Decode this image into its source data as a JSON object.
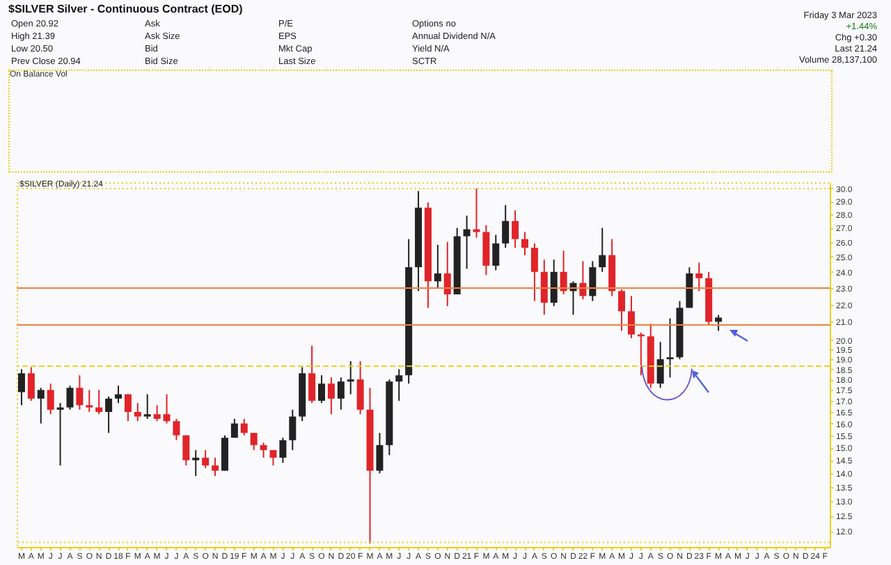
{
  "chart_data": {
    "type": "candlestick",
    "title": "$SILVER Silver - Continuous Contract (EOD)",
    "annotations": [
      "Open 20.92",
      "High 21.39",
      "Low 20.50",
      "Prev Close 20.94",
      "Ask",
      "Ask Size",
      "Bid",
      "Bid Size",
      "P/E",
      "EPS",
      "Mkt Cap",
      "Last Size",
      "Options no",
      "Annual Dividend N/A",
      "Yield N/A",
      "SCTR",
      "Friday 3 Mar 2023",
      "+1.44%",
      "Chg +0.30",
      "Last 21.24",
      "Volume 28,137,100",
      "On Balance Vol",
      "$SILVER (Daily) 21.24"
    ],
    "colors": [
      "#222222",
      "#e0242a",
      "#222222",
      "#e0242a",
      "#222222",
      "#222222",
      "#e0242a",
      "#e0242a",
      "#e0242a",
      "#222222",
      "#222222",
      "#e0242a",
      "#e0242a",
      "#222222",
      "#e0242a",
      "#e0242a",
      "#e0242a",
      "#e0242a",
      "#222222",
      "#e0242a",
      "#e0242a",
      "#222222",
      "#222222",
      "#e0242a",
      "#e0242a",
      "#e0242a",
      "#e0242a",
      "#222222",
      "#222222",
      "#222222",
      "#e0242a",
      "#222222",
      "#e0242a",
      "#222222",
      "#222222",
      "#e0242a",
      "#e0242a",
      "#222222",
      "#222222",
      "#222222",
      "#222222",
      "#222222",
      "#e0242a",
      "#222222",
      "#e0242a",
      "#222222",
      "#222222",
      "#e0242a",
      "#e0242a",
      "#222222",
      "#222222",
      "#e0242a",
      "#e0242a",
      "#e0242a",
      "#e0242a",
      "#222222",
      "#e0242a",
      "#222222",
      "#e0242a",
      "#222222",
      "#222222",
      "#e0242a",
      "#e0242a",
      "#e0242a",
      "#e0242a",
      "#e0242a",
      "#222222",
      "#222222",
      "#222222",
      "#222222",
      "#e0242a",
      "#e0242a",
      "#222222",
      null,
      null,
      null,
      null,
      null,
      null,
      null,
      null,
      null,
      null,
      null
    ],
    "categories": [
      "M",
      "A",
      "M",
      "J",
      "J",
      "A",
      "S",
      "O",
      "N",
      "D",
      "18",
      "F",
      "M",
      "A",
      "M",
      "J",
      "J",
      "A",
      "S",
      "O",
      "N",
      "D",
      "19",
      "F",
      "M",
      "A",
      "M",
      "J",
      "J",
      "A",
      "S",
      "O",
      "N",
      "D",
      "20",
      "F",
      "M",
      "A",
      "M",
      "J",
      "J",
      "A",
      "S",
      "O",
      "N",
      "D",
      "21",
      "F",
      "M",
      "A",
      "M",
      "J",
      "J",
      "A",
      "S",
      "O",
      "N",
      "D",
      "22",
      "F",
      "M",
      "A",
      "M",
      "J",
      "J",
      "A",
      "S",
      "O",
      "N",
      "D",
      "23",
      "F",
      "M",
      "A",
      "M",
      "J",
      "J",
      "A",
      "S",
      "O",
      "N",
      "D",
      "24",
      "F"
    ],
    "ohlc": [
      [
        17.4,
        18.5,
        16.8,
        18.3
      ],
      [
        18.3,
        18.6,
        17.0,
        17.1
      ],
      [
        17.1,
        17.6,
        16.0,
        17.5
      ],
      [
        17.5,
        17.8,
        16.4,
        16.6
      ],
      [
        16.6,
        16.9,
        14.3,
        16.7
      ],
      [
        16.7,
        17.7,
        16.6,
        17.6
      ],
      [
        17.6,
        18.2,
        16.6,
        16.8
      ],
      [
        16.8,
        17.5,
        16.5,
        16.7
      ],
      [
        16.7,
        17.5,
        16.4,
        16.5
      ],
      [
        16.5,
        17.2,
        15.6,
        17.1
      ],
      [
        17.1,
        17.7,
        16.9,
        17.3
      ],
      [
        17.3,
        17.3,
        16.1,
        16.5
      ],
      [
        16.5,
        16.9,
        16.1,
        16.3
      ],
      [
        16.3,
        17.3,
        16.2,
        16.4
      ],
      [
        16.4,
        16.8,
        16.1,
        16.2
      ],
      [
        16.4,
        17.3,
        16.0,
        16.1
      ],
      [
        16.1,
        16.2,
        15.3,
        15.5
      ],
      [
        15.5,
        15.5,
        14.3,
        14.5
      ],
      [
        14.5,
        14.9,
        13.9,
        14.6
      ],
      [
        14.6,
        14.9,
        14.2,
        14.3
      ],
      [
        14.3,
        14.6,
        13.9,
        14.1
      ],
      [
        14.1,
        15.5,
        14.1,
        15.4
      ],
      [
        15.4,
        16.2,
        15.4,
        16.0
      ],
      [
        16.0,
        16.2,
        15.5,
        15.6
      ],
      [
        15.6,
        15.6,
        14.9,
        15.1
      ],
      [
        15.1,
        15.2,
        14.6,
        14.9
      ],
      [
        14.9,
        14.9,
        14.3,
        14.6
      ],
      [
        14.6,
        15.4,
        14.4,
        15.3
      ],
      [
        15.3,
        16.6,
        14.9,
        16.3
      ],
      [
        16.3,
        18.6,
        16.1,
        18.3
      ],
      [
        18.3,
        19.7,
        16.9,
        17.0
      ],
      [
        17.0,
        18.2,
        16.9,
        17.8
      ],
      [
        17.8,
        18.1,
        16.4,
        17.1
      ],
      [
        17.1,
        18.1,
        16.6,
        17.9
      ],
      [
        17.9,
        18.9,
        17.3,
        18.0
      ],
      [
        18.0,
        18.9,
        16.4,
        16.6
      ],
      [
        16.6,
        17.6,
        11.6,
        14.1
      ],
      [
        14.1,
        15.6,
        14.0,
        15.1
      ],
      [
        15.1,
        18.0,
        14.7,
        17.9
      ],
      [
        17.9,
        18.5,
        17.0,
        18.2
      ],
      [
        18.2,
        26.2,
        17.8,
        24.3
      ],
      [
        24.3,
        29.8,
        22.8,
        28.5
      ],
      [
        28.5,
        28.9,
        21.8,
        23.4
      ],
      [
        23.4,
        25.8,
        23.0,
        23.9
      ],
      [
        23.9,
        26.0,
        21.9,
        22.6
      ],
      [
        22.6,
        27.0,
        22.6,
        26.4
      ],
      [
        26.4,
        27.9,
        24.2,
        26.9
      ],
      [
        26.9,
        30.0,
        26.3,
        26.7
      ],
      [
        26.7,
        27.2,
        23.8,
        24.4
      ],
      [
        24.4,
        26.5,
        24.1,
        25.9
      ],
      [
        25.9,
        28.7,
        25.6,
        27.5
      ],
      [
        27.5,
        28.3,
        25.6,
        26.2
      ],
      [
        26.2,
        26.7,
        25.1,
        25.6
      ],
      [
        25.6,
        25.9,
        22.2,
        24.0
      ],
      [
        24.0,
        24.8,
        21.4,
        22.1
      ],
      [
        22.1,
        24.8,
        21.9,
        24.0
      ],
      [
        24.0,
        25.4,
        22.6,
        22.8
      ],
      [
        22.8,
        23.4,
        21.4,
        23.3
      ],
      [
        23.3,
        24.7,
        22.3,
        22.5
      ],
      [
        22.5,
        24.7,
        22.2,
        24.3
      ],
      [
        24.3,
        27.0,
        24.0,
        25.1
      ],
      [
        25.1,
        26.2,
        22.5,
        22.8
      ],
      [
        22.8,
        22.9,
        20.5,
        21.6
      ],
      [
        21.6,
        22.5,
        20.1,
        20.3
      ],
      [
        20.3,
        20.4,
        18.2,
        20.2
      ],
      [
        20.2,
        20.9,
        17.6,
        17.8
      ],
      [
        17.8,
        19.9,
        17.6,
        19.0
      ],
      [
        19.0,
        21.2,
        18.1,
        19.1
      ],
      [
        19.1,
        22.2,
        19.0,
        21.8
      ],
      [
        21.8,
        24.3,
        21.8,
        23.9
      ],
      [
        23.9,
        24.6,
        22.8,
        23.6
      ],
      [
        23.6,
        24.0,
        20.8,
        21.0
      ],
      [
        21.0,
        21.39,
        20.5,
        21.24
      ],
      null,
      null,
      null,
      null,
      null,
      null,
      null,
      null,
      null,
      null,
      null
    ],
    "log": "y",
    "ylim": [
      11.5,
      30.5
    ],
    "yticks": [
      {
        "value": 12,
        "label": "12.0"
      },
      {
        "value": 12.5,
        "label": "12.5"
      },
      {
        "value": 13,
        "label": "13.0"
      },
      {
        "value": 13.5,
        "label": "13.5"
      },
      {
        "value": 14,
        "label": "14.0"
      },
      {
        "value": 14.5,
        "label": "14.5"
      },
      {
        "value": 15,
        "label": "15.0"
      },
      {
        "value": 15.5,
        "label": "15.5"
      },
      {
        "value": 16,
        "label": "16.0"
      },
      {
        "value": 16.5,
        "label": "16.5"
      },
      {
        "value": 17,
        "label": "17.0"
      },
      {
        "value": 17.5,
        "label": "17.5"
      },
      {
        "value": 18,
        "label": "18.0"
      },
      {
        "value": 18.5,
        "label": "18.5"
      },
      {
        "value": 19,
        "label": "19.0"
      },
      {
        "value": 19.5,
        "label": "19.5"
      },
      {
        "value": 20,
        "label": "20.0"
      },
      {
        "value": 21,
        "label": "21.0"
      },
      {
        "value": 22,
        "label": "22.0"
      },
      {
        "value": 23,
        "label": "23.0"
      },
      {
        "value": 24,
        "label": "24.0"
      },
      {
        "value": 25,
        "label": "25.0"
      },
      {
        "value": 26,
        "label": "26.0"
      },
      {
        "value": 27,
        "label": "27.0"
      },
      {
        "value": 28,
        "label": "28.0"
      },
      {
        "value": 29,
        "label": "29.0"
      },
      {
        "value": 30,
        "label": "30.0"
      }
    ],
    "ref_lines": [
      {
        "axis": "y",
        "value": 30.0,
        "color": "#e8d020",
        "line_style": "dotted"
      },
      {
        "axis": "y",
        "value": 22.98,
        "color": "#f08040"
      },
      {
        "axis": "y",
        "value": 20.82,
        "color": "#f08040"
      },
      {
        "axis": "y",
        "value": 18.65,
        "color": "#e8d020",
        "line_style": "dashed"
      },
      {
        "axis": "y",
        "value": 11.64,
        "color": "#e8d020",
        "line_style": "dotted"
      }
    ],
    "grid": false
  }
}
